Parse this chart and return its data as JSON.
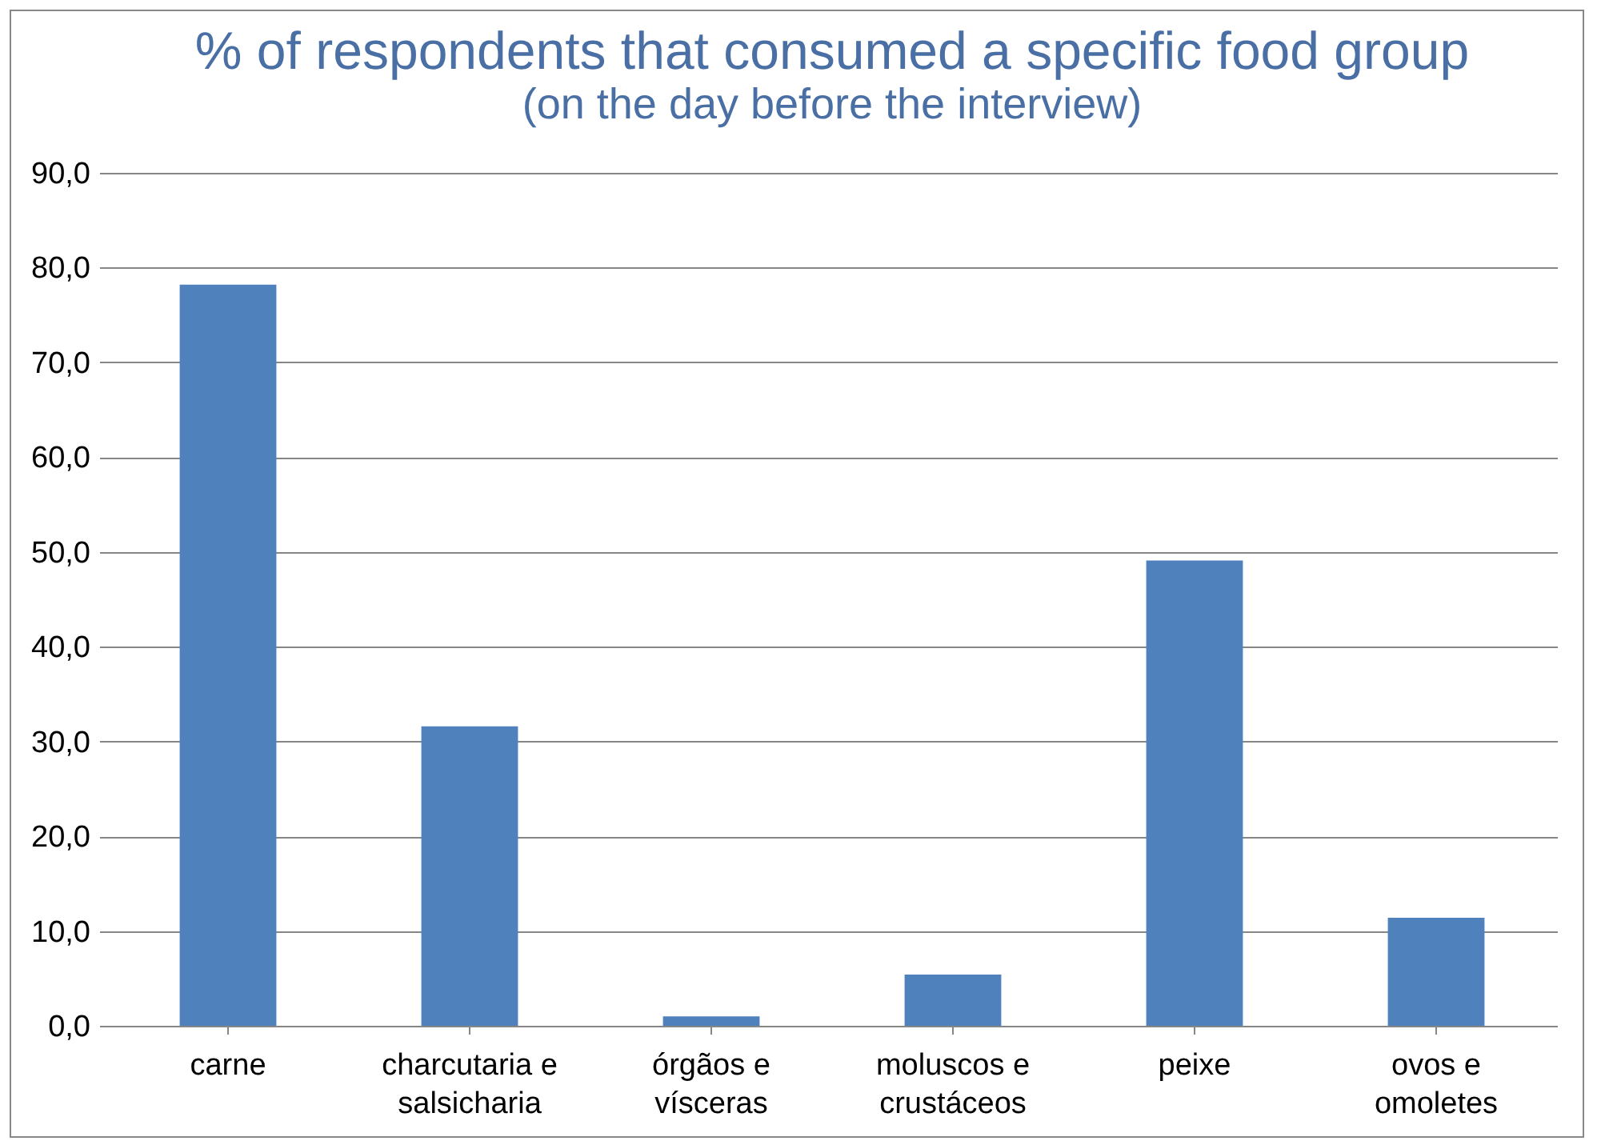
{
  "chart_data": {
    "type": "bar",
    "title": "% of respondents that consumed a specific food group",
    "subtitle": "(on the day before the interview)",
    "categories": [
      "carne",
      "charcutaria e salsicharia",
      "órgãos e vísceras",
      "moluscos e crustáceos",
      "peixe",
      "ovos e omoletes"
    ],
    "values": [
      78.2,
      31.6,
      1.0,
      5.4,
      49.1,
      11.4
    ],
    "color": "#4f81bd",
    "ylim": [
      0,
      90
    ],
    "yticks": [
      {
        "value": 0,
        "label": "0,0"
      },
      {
        "value": 10,
        "label": "10,0"
      },
      {
        "value": 20,
        "label": "20,0"
      },
      {
        "value": 30,
        "label": "30,0"
      },
      {
        "value": 40,
        "label": "40,0"
      },
      {
        "value": 50,
        "label": "50,0"
      },
      {
        "value": 60,
        "label": "60,0"
      },
      {
        "value": 70,
        "label": "70,0"
      },
      {
        "value": 80,
        "label": "80,0"
      },
      {
        "value": 90,
        "label": "90,0"
      }
    ],
    "grid": "y"
  }
}
